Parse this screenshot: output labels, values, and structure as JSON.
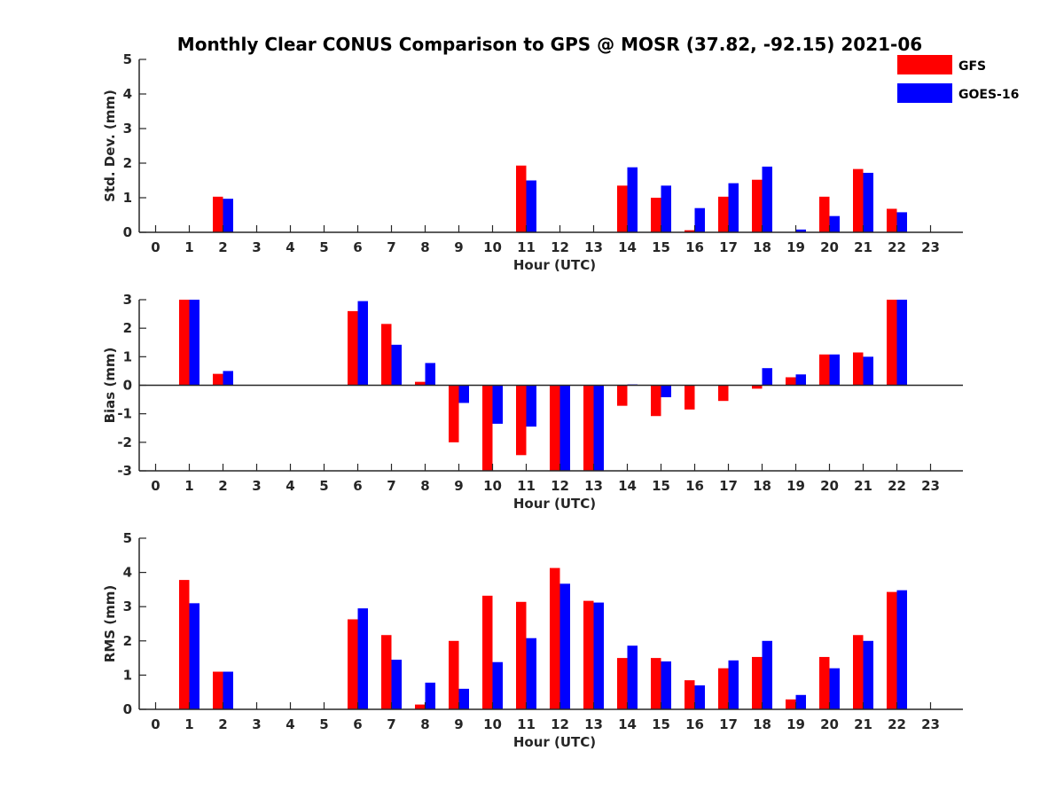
{
  "title": "Monthly Clear CONUS Comparison to GPS @ MOSR (37.82, -92.15) 2021-06",
  "legend": [
    {
      "label": "GFS",
      "color": "#ff0000"
    },
    {
      "label": "GOES-16",
      "color": "#0000ff"
    }
  ],
  "chart_data": [
    {
      "type": "bar",
      "xlabel": "Hour (UTC)",
      "ylabel": "Std. Dev. (mm)",
      "ylim": [
        0,
        5
      ],
      "yticks": [
        0,
        1,
        2,
        3,
        4,
        5
      ],
      "categories": [
        "0",
        "1",
        "2",
        "3",
        "4",
        "5",
        "6",
        "7",
        "8",
        "9",
        "10",
        "11",
        "12",
        "13",
        "14",
        "15",
        "16",
        "17",
        "18",
        "19",
        "20",
        "21",
        "22",
        "23"
      ],
      "series": [
        {
          "name": "GFS",
          "color": "#ff0000",
          "values": [
            0,
            0,
            1.03,
            0,
            0,
            0,
            0,
            0,
            0,
            0,
            0,
            1.93,
            0,
            0,
            1.35,
            1.0,
            0.06,
            1.03,
            1.52,
            0,
            1.03,
            1.83,
            0.68,
            0
          ]
        },
        {
          "name": "GOES-16",
          "color": "#0000ff",
          "values": [
            0,
            0,
            0.97,
            0,
            0,
            0,
            0,
            0,
            0,
            0,
            0,
            1.5,
            0,
            0,
            1.88,
            1.35,
            0.7,
            1.42,
            1.9,
            0.08,
            0.47,
            1.72,
            0.58,
            0
          ]
        }
      ]
    },
    {
      "type": "bar",
      "xlabel": "Hour (UTC)",
      "ylabel": "Bias (mm)",
      "ylim": [
        -3,
        3
      ],
      "yticks": [
        -3,
        -2,
        -1,
        0,
        1,
        2,
        3
      ],
      "categories": [
        "0",
        "1",
        "2",
        "3",
        "4",
        "5",
        "6",
        "7",
        "8",
        "9",
        "10",
        "11",
        "12",
        "13",
        "14",
        "15",
        "16",
        "17",
        "18",
        "19",
        "20",
        "21",
        "22",
        "23"
      ],
      "series": [
        {
          "name": "GFS",
          "color": "#ff0000",
          "values": [
            0,
            3.0,
            0.4,
            0,
            0,
            0,
            2.6,
            2.15,
            0.12,
            -2.0,
            -3.0,
            -2.45,
            -3.0,
            -3.0,
            -0.72,
            -1.08,
            -0.85,
            -0.55,
            -0.12,
            0.28,
            1.08,
            1.15,
            3.0,
            0
          ]
        },
        {
          "name": "GOES-16",
          "color": "#0000ff",
          "values": [
            0,
            3.0,
            0.5,
            0,
            0,
            0,
            2.95,
            1.42,
            0.78,
            -0.62,
            -1.35,
            -1.45,
            -3.0,
            -3.0,
            0.03,
            -0.42,
            0,
            0,
            0.6,
            0.38,
            1.08,
            1.0,
            3.0,
            0
          ]
        }
      ]
    },
    {
      "type": "bar",
      "xlabel": "Hour (UTC)",
      "ylabel": "RMS (mm)",
      "ylim": [
        0,
        5
      ],
      "yticks": [
        0,
        1,
        2,
        3,
        4,
        5
      ],
      "categories": [
        "0",
        "1",
        "2",
        "3",
        "4",
        "5",
        "6",
        "7",
        "8",
        "9",
        "10",
        "11",
        "12",
        "13",
        "14",
        "15",
        "16",
        "17",
        "18",
        "19",
        "20",
        "21",
        "22",
        "23"
      ],
      "series": [
        {
          "name": "GFS",
          "color": "#ff0000",
          "values": [
            0,
            3.78,
            1.1,
            0,
            0,
            0,
            2.63,
            2.17,
            0.14,
            2.0,
            3.32,
            3.14,
            4.13,
            3.17,
            1.5,
            1.5,
            0.85,
            1.2,
            1.53,
            0.29,
            1.53,
            2.17,
            3.43,
            0
          ]
        },
        {
          "name": "GOES-16",
          "color": "#0000ff",
          "values": [
            0,
            3.1,
            1.1,
            0,
            0,
            0,
            2.95,
            1.45,
            0.78,
            0.6,
            1.38,
            2.08,
            3.67,
            3.12,
            1.86,
            1.4,
            0.7,
            1.43,
            2.0,
            0.42,
            1.2,
            2.0,
            3.48,
            0
          ]
        }
      ]
    }
  ]
}
